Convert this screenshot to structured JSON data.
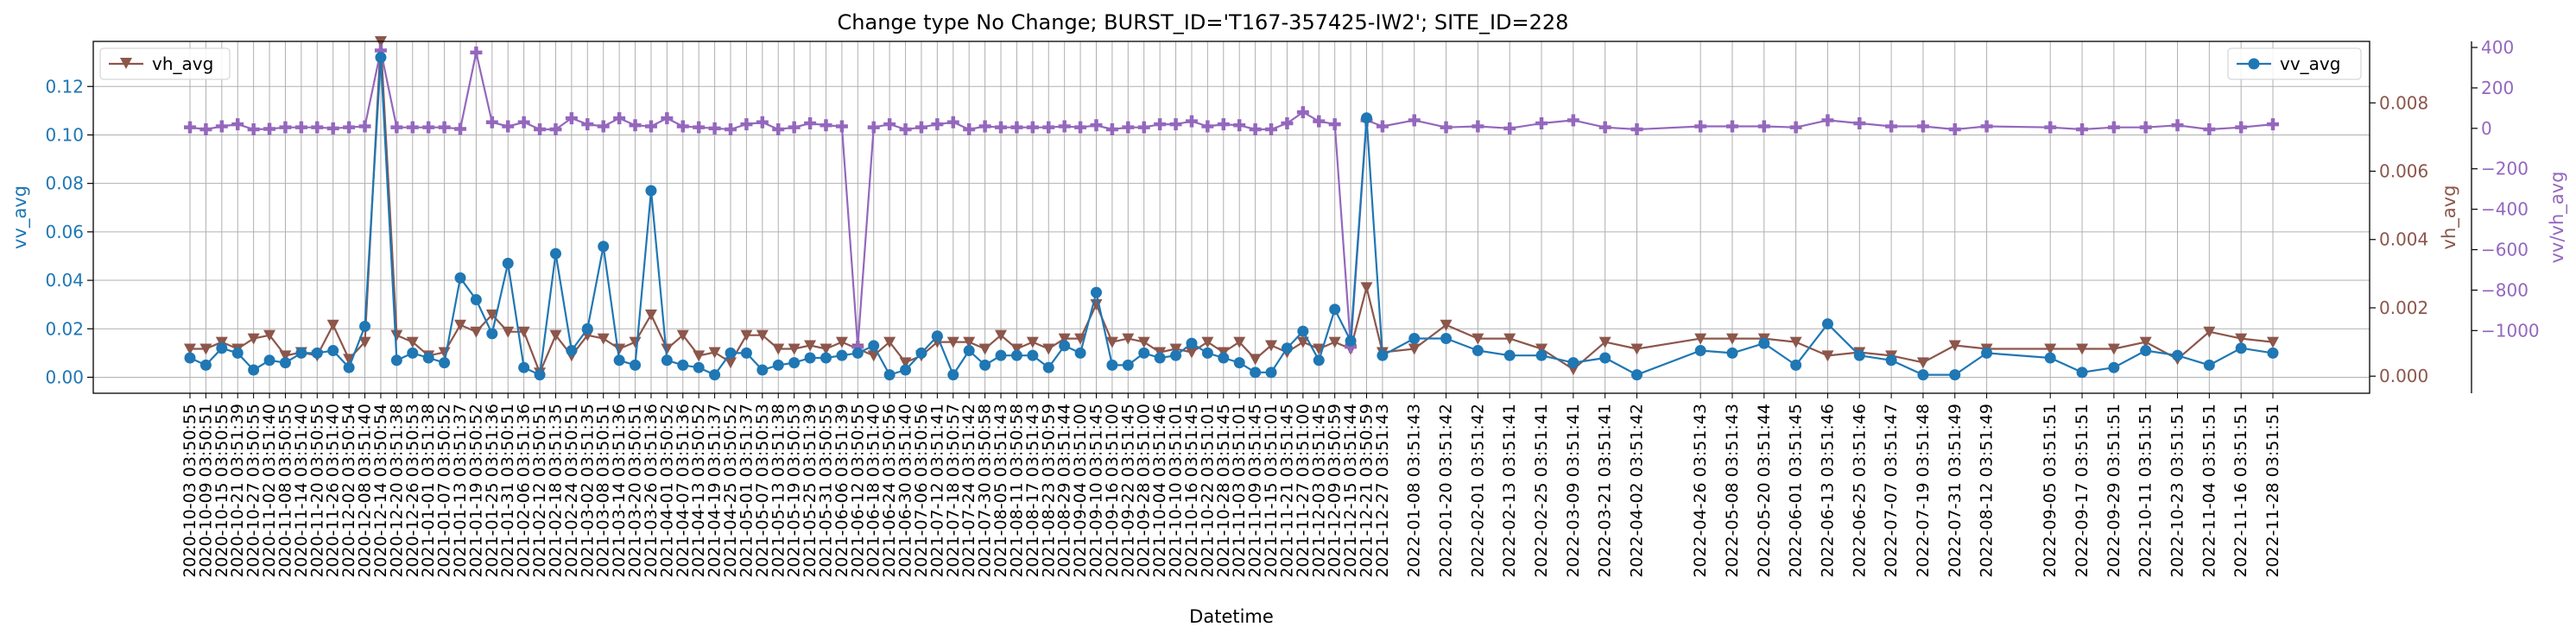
{
  "colors": {
    "vv": "#1f77b4",
    "vh": "#8c564b",
    "ratio": "#9467bd",
    "grid": "#b0b0b0"
  },
  "chart_data": {
    "type": "line",
    "title": "Change type No Change; BURST_ID='T167-357425-IW2'; SITE_ID=228",
    "xlabel": "Datetime",
    "grid": true,
    "x": [
      "2020-10-03 03:50:55",
      "2020-10-09 03:50:51",
      "2020-10-15 03:50:55",
      "2020-10-21 03:51:39",
      "2020-10-27 03:50:55",
      "2020-11-02 03:51:40",
      "2020-11-08 03:50:55",
      "2020-11-14 03:51:40",
      "2020-11-20 03:50:55",
      "2020-11-26 03:51:40",
      "2020-12-02 03:50:54",
      "2020-12-08 03:51:40",
      "2020-12-14 03:50:54",
      "2020-12-20 03:51:38",
      "2020-12-26 03:50:53",
      "2021-01-01 03:51:38",
      "2021-01-07 03:50:52",
      "2021-01-13 03:51:37",
      "2021-01-19 03:50:52",
      "2021-01-25 03:51:36",
      "2021-01-31 03:50:51",
      "2021-02-06 03:51:36",
      "2021-02-12 03:50:51",
      "2021-02-18 03:51:35",
      "2021-02-24 03:50:51",
      "2021-03-02 03:51:35",
      "2021-03-08 03:50:51",
      "2021-03-14 03:51:36",
      "2021-03-20 03:50:51",
      "2021-03-26 03:51:36",
      "2021-04-01 03:50:52",
      "2021-04-07 03:51:36",
      "2021-04-13 03:50:52",
      "2021-04-19 03:51:37",
      "2021-04-25 03:50:52",
      "2021-05-01 03:51:37",
      "2021-05-07 03:50:53",
      "2021-05-13 03:51:38",
      "2021-05-19 03:50:53",
      "2021-05-25 03:51:39",
      "2021-05-31 03:50:55",
      "2021-06-06 03:51:39",
      "2021-06-12 03:50:55",
      "2021-06-18 03:51:40",
      "2021-06-24 03:50:56",
      "2021-06-30 03:51:40",
      "2021-07-06 03:50:56",
      "2021-07-12 03:51:41",
      "2021-07-18 03:50:57",
      "2021-07-24 03:51:42",
      "2021-07-30 03:50:58",
      "2021-08-05 03:51:43",
      "2021-08-11 03:50:58",
      "2021-08-17 03:51:43",
      "2021-08-23 03:50:59",
      "2021-08-29 03:51:44",
      "2021-09-04 03:51:00",
      "2021-09-10 03:51:45",
      "2021-09-16 03:51:00",
      "2021-09-22 03:51:45",
      "2021-09-28 03:51:00",
      "2021-10-04 03:51:46",
      "2021-10-10 03:51:01",
      "2021-10-16 03:51:45",
      "2021-10-22 03:51:01",
      "2021-10-28 03:51:45",
      "2021-11-03 03:51:01",
      "2021-11-09 03:51:45",
      "2021-11-15 03:51:01",
      "2021-11-21 03:51:45",
      "2021-11-27 03:51:00",
      "2021-12-03 03:51:45",
      "2021-12-09 03:50:59",
      "2021-12-15 03:51:44",
      "2021-12-21 03:50:59",
      "2021-12-27 03:51:43",
      "2022-01-08 03:51:43",
      "2022-01-20 03:51:42",
      "2022-02-01 03:51:42",
      "2022-02-13 03:51:41",
      "2022-02-25 03:51:41",
      "2022-03-09 03:51:41",
      "2022-03-21 03:51:41",
      "2022-04-02 03:51:42",
      "2022-04-26 03:51:43",
      "2022-05-08 03:51:43",
      "2022-05-20 03:51:44",
      "2022-06-01 03:51:45",
      "2022-06-13 03:51:46",
      "2022-06-25 03:51:46",
      "2022-07-07 03:51:47",
      "2022-07-19 03:51:48",
      "2022-07-31 03:51:49",
      "2022-08-12 03:51:49",
      "2022-09-05 03:51:51",
      "2022-09-17 03:51:51",
      "2022-09-29 03:51:51",
      "2022-10-11 03:51:51",
      "2022-10-23 03:51:51",
      "2022-11-04 03:51:51",
      "2022-11-16 03:51:51",
      "2022-11-28 03:51:51"
    ],
    "series": [
      {
        "name": "vv_avg",
        "axis": "left",
        "marker": "circle",
        "ylabel": "vv_avg",
        "ylim": [
          -0.0066,
          0.1386
        ],
        "yticks": [
          0.0,
          0.02,
          0.04,
          0.06,
          0.08,
          0.1,
          0.12
        ],
        "ytick_labels": [
          "0.00",
          "0.02",
          "0.04",
          "0.06",
          "0.08",
          "0.10",
          "0.12"
        ],
        "values": [
          0.008,
          0.005,
          0.012,
          0.01,
          0.003,
          0.007,
          0.006,
          0.01,
          0.01,
          0.011,
          0.004,
          0.021,
          0.132,
          0.007,
          0.01,
          0.008,
          0.006,
          0.041,
          0.032,
          0.018,
          0.047,
          0.004,
          0.001,
          0.051,
          0.011,
          0.02,
          0.054,
          0.007,
          0.005,
          0.077,
          0.007,
          0.005,
          0.004,
          0.001,
          0.01,
          0.01,
          0.003,
          0.005,
          0.006,
          0.008,
          0.008,
          0.009,
          0.01,
          0.013,
          0.001,
          0.003,
          0.01,
          0.017,
          0.001,
          0.011,
          0.005,
          0.009,
          0.009,
          0.009,
          0.004,
          0.013,
          0.01,
          0.035,
          0.005,
          0.005,
          0.01,
          0.008,
          0.009,
          0.014,
          0.01,
          0.008,
          0.006,
          0.002,
          0.002,
          0.012,
          0.019,
          0.007,
          0.028,
          0.015,
          0.107,
          0.009,
          0.016,
          0.016,
          0.011,
          0.009,
          0.009,
          0.006,
          0.008,
          0.001,
          0.011,
          0.01,
          0.014,
          0.005,
          0.022,
          0.009,
          0.007,
          0.001,
          0.001,
          0.01,
          0.008,
          0.002,
          0.004,
          0.011,
          0.009,
          0.005,
          0.012,
          0.01
        ]
      },
      {
        "name": "vh_avg",
        "axis": "right",
        "marker": "triangle-down",
        "ylabel": "vh_avg",
        "ylim": [
          -0.0005,
          0.0098
        ],
        "yticks": [
          0.0,
          0.002,
          0.004,
          0.006,
          0.008
        ],
        "ytick_labels": [
          "0.000",
          "0.002",
          "0.004",
          "0.006",
          "0.008"
        ],
        "values": [
          0.0008,
          0.0008,
          0.001,
          0.0008,
          0.0011,
          0.0012,
          0.0006,
          0.0007,
          0.0006,
          0.0015,
          0.0005,
          0.001,
          0.0098,
          0.0012,
          0.001,
          0.0006,
          0.0007,
          0.0015,
          0.0013,
          0.0018,
          0.0013,
          0.0013,
          0.0001,
          0.0012,
          0.0006,
          0.0012,
          0.0011,
          0.0008,
          0.001,
          0.0018,
          0.0008,
          0.0012,
          0.0006,
          0.0007,
          0.0004,
          0.0012,
          0.0012,
          0.0008,
          0.0008,
          0.0009,
          0.0008,
          0.001,
          0.0008,
          0.0006,
          0.001,
          0.0004,
          0.0006,
          0.001,
          0.001,
          0.001,
          0.0008,
          0.0012,
          0.0008,
          0.001,
          0.0008,
          0.0011,
          0.0011,
          0.0021,
          0.001,
          0.0011,
          0.001,
          0.0007,
          0.0008,
          0.0007,
          0.001,
          0.0007,
          0.001,
          0.0005,
          0.0009,
          0.0007,
          0.001,
          0.0008,
          0.001,
          0.0008,
          0.0026,
          0.0007,
          0.0008,
          0.0015,
          0.0011,
          0.0011,
          0.0008,
          0.0002,
          0.001,
          0.0008,
          0.0011,
          0.0011,
          0.0011,
          0.001,
          0.0006,
          0.0007,
          0.0006,
          0.0004,
          0.0009,
          0.0008,
          0.0008,
          0.0008,
          0.0008,
          0.001,
          0.0005,
          0.0013,
          0.0011,
          0.001
        ]
      },
      {
        "name": "vv/vh_avg",
        "axis": "far-right",
        "marker": "plus",
        "ylabel": "vv/vh_avg",
        "ylim": [
          -1310,
          430
        ],
        "yticks": [
          -1000,
          -800,
          -600,
          -400,
          -200,
          0,
          200,
          400
        ],
        "ytick_labels": [
          "−1000",
          "−800",
          "−600",
          "−400",
          "−200",
          "0",
          "200",
          "400"
        ],
        "values": [
          5,
          -5,
          10,
          20,
          -5,
          -3,
          5,
          5,
          5,
          0,
          5,
          10,
          385,
          5,
          5,
          5,
          5,
          -3,
          375,
          30,
          10,
          30,
          -5,
          -5,
          50,
          20,
          10,
          50,
          15,
          10,
          50,
          10,
          5,
          0,
          -5,
          20,
          30,
          -5,
          5,
          25,
          15,
          10,
          -1080,
          5,
          20,
          -5,
          5,
          20,
          30,
          -5,
          10,
          5,
          5,
          5,
          5,
          10,
          5,
          15,
          -5,
          5,
          5,
          20,
          20,
          35,
          10,
          20,
          15,
          -5,
          -5,
          25,
          80,
          35,
          20,
          -1080,
          40,
          10,
          40,
          5,
          10,
          0,
          25,
          40,
          5,
          -5,
          10,
          10,
          10,
          5,
          40,
          25,
          10,
          10,
          -5,
          10,
          5,
          -5,
          5,
          5,
          15,
          -5,
          5,
          20
        ]
      }
    ],
    "legends": [
      {
        "label": "vh_avg",
        "series": "vh_avg",
        "placement": "top-left"
      },
      {
        "label": "vv_avg",
        "series": "vv_avg",
        "placement": "top-right"
      }
    ]
  }
}
